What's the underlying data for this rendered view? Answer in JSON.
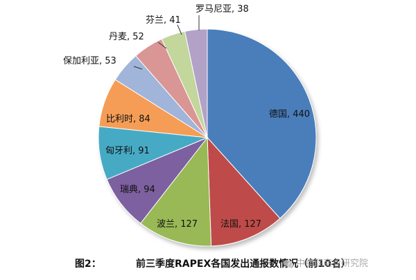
{
  "chart_data": {
    "type": "pie",
    "title": "",
    "slices": [
      {
        "label": "德国, 440",
        "category": "德国",
        "value": 440,
        "color": "#4a7ebb"
      },
      {
        "label": "法国, 127",
        "category": "法国",
        "value": 127,
        "color": "#be4b48"
      },
      {
        "label": "波兰, 127",
        "category": "波兰",
        "value": 127,
        "color": "#98b954"
      },
      {
        "label": "瑞典, 94",
        "category": "瑞典",
        "value": 94,
        "color": "#7d60a0"
      },
      {
        "label": "匈牙利, 91",
        "category": "匈牙利",
        "value": 91,
        "color": "#46aac5"
      },
      {
        "label": "比利时, 84",
        "category": "比利时",
        "value": 84,
        "color": "#f59d56"
      },
      {
        "label": "保加利亚, 53",
        "category": "保加利亚",
        "value": 53,
        "color": "#a1b4d9"
      },
      {
        "label": "丹麦, 52",
        "category": "丹麦",
        "value": 52,
        "color": "#d99694"
      },
      {
        "label": "芬兰, 41",
        "category": "芬兰",
        "value": 41,
        "color": "#c3d69b"
      },
      {
        "label": "罗马尼亚, 38",
        "category": "罗马尼亚",
        "value": 38,
        "color": "#b3a2c7"
      }
    ],
    "start_angle_deg": 0,
    "direction": "clockwise",
    "legend": "none"
  },
  "caption": {
    "label": "图2：",
    "text": "前三季度RAPEX各国发出通报数情况（前10名）"
  },
  "watermark": {
    "text": "中纺联商业研究院",
    "icon": "wechat-icon"
  }
}
